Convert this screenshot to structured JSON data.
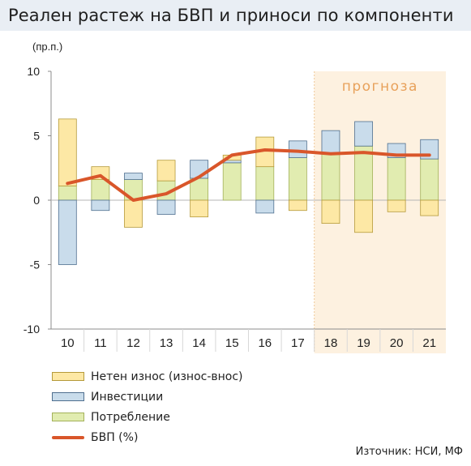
{
  "title": "Реален растеж на БВП и приноси по компоненти",
  "source": "Източник: НСИ, МФ",
  "colors": {
    "net_exports": "#fde8a5",
    "net_exports_border": "#b59a3a",
    "investment": "#c9dceb",
    "investment_border": "#4f6f8f",
    "consumption": "#e1ecb0",
    "consumption_border": "#a3b15a",
    "gdp": "#d9562a",
    "forecast_shade": "#fdf1e0",
    "forecast_text": "#e8a15a"
  },
  "chart_data": {
    "type": "bar",
    "stacked": true,
    "ylabel": "(пр.п.)",
    "ylim": [
      -10,
      10
    ],
    "yticks": [
      "10",
      "5",
      "0",
      "-5",
      "-10"
    ],
    "categories": [
      "10",
      "11",
      "12",
      "13",
      "14",
      "15",
      "16",
      "17",
      "18",
      "19",
      "20",
      "21"
    ],
    "forecast_label": "прогноза",
    "forecast_categories": [
      "18",
      "19",
      "20",
      "21"
    ],
    "grid": false,
    "series": [
      {
        "name": "Нетен износ (износ-внос)",
        "kind": "bar",
        "values": [
          5.2,
          1.0,
          -2.1,
          1.6,
          -1.3,
          0.4,
          2.3,
          -0.8,
          -1.8,
          -2.5,
          -0.9,
          -1.2
        ]
      },
      {
        "name": "Инвестиции",
        "kind": "bar",
        "values": [
          -5.0,
          -0.8,
          0.5,
          -1.1,
          1.4,
          0.2,
          -1.0,
          1.3,
          1.8,
          1.9,
          1.1,
          1.5
        ]
      },
      {
        "name": "Потребление",
        "kind": "bar",
        "values": [
          1.1,
          1.6,
          1.6,
          1.5,
          1.7,
          2.9,
          2.6,
          3.3,
          3.6,
          4.2,
          3.3,
          3.2
        ]
      },
      {
        "name": "БВП (%)",
        "kind": "line",
        "values": [
          1.3,
          1.9,
          0.0,
          0.5,
          1.8,
          3.5,
          3.9,
          3.8,
          3.6,
          3.7,
          3.5,
          3.5
        ]
      }
    ]
  }
}
